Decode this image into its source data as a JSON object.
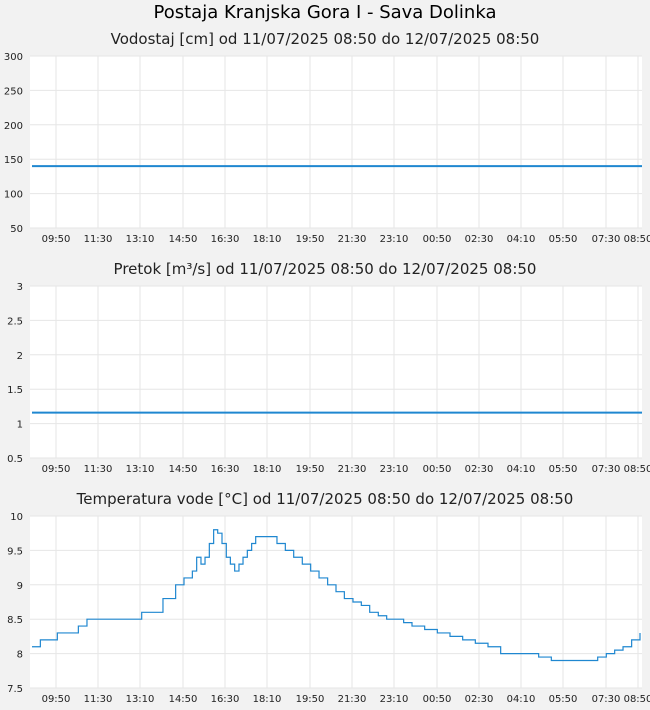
{
  "page_title": "Postaja Kranjska Gora I - Sava Dolinka",
  "colors": {
    "series": "#1f87d0",
    "grid": "#e6e6e6",
    "background": "#f2f2f2",
    "plot": "#ffffff"
  },
  "chart_data": [
    {
      "type": "line",
      "title": "Vodostaj [cm] od 11/07/2025 08:50 do 12/07/2025 08:50",
      "xlabel": "",
      "ylabel": "",
      "ylim": [
        50,
        300
      ],
      "yticks": [
        "300",
        "250",
        "200",
        "150",
        "100",
        "50"
      ],
      "xticks": [
        "09:50",
        "11:30",
        "13:10",
        "14:50",
        "16:30",
        "18:10",
        "19:50",
        "21:30",
        "23:10",
        "00:50",
        "02:30",
        "04:10",
        "05:50",
        "07:30",
        "08:50"
      ],
      "grid": true,
      "series": [
        {
          "x": [
            "08:50",
            "08:50+24h"
          ],
          "y": [
            140,
            140
          ]
        }
      ]
    },
    {
      "type": "line",
      "title": "Pretok [m³/s] od 11/07/2025 08:50 do 12/07/2025 08:50",
      "xlabel": "",
      "ylabel": "",
      "ylim": [
        0.5,
        3
      ],
      "yticks": [
        "3",
        "2.5",
        "2",
        "1.5",
        "1",
        "0.5"
      ],
      "xticks": [
        "09:50",
        "11:30",
        "13:10",
        "14:50",
        "16:30",
        "18:10",
        "19:50",
        "21:30",
        "23:10",
        "00:50",
        "02:30",
        "04:10",
        "05:50",
        "07:30",
        "08:50"
      ],
      "grid": true,
      "series": [
        {
          "x": [
            "08:50",
            "08:50+24h"
          ],
          "y": [
            1.16,
            1.16
          ]
        }
      ]
    },
    {
      "type": "line",
      "title": "Temperatura vode [°C] od 11/07/2025 08:50 do 12/07/2025 08:50",
      "xlabel": "",
      "ylabel": "",
      "ylim": [
        7.5,
        10
      ],
      "yticks": [
        "10",
        "9.5",
        "9",
        "8.5",
        "8",
        "7.5"
      ],
      "xticks": [
        "09:50",
        "11:30",
        "13:10",
        "14:50",
        "16:30",
        "18:10",
        "19:50",
        "21:30",
        "23:10",
        "00:50",
        "02:30",
        "04:10",
        "05:50",
        "07:30",
        "08:50"
      ],
      "grid": true,
      "series": [
        {
          "x_hours": [
            0,
            0.33,
            0.67,
            1.0,
            1.5,
            1.83,
            2.17,
            2.5,
            3.0,
            3.5,
            3.83,
            4.0,
            4.17,
            4.33,
            4.67,
            5.0,
            5.17,
            5.33,
            5.67,
            6.0,
            6.17,
            6.33,
            6.5,
            6.67,
            6.83,
            7.0,
            7.17,
            7.33,
            7.5,
            7.67,
            7.83,
            8.0,
            8.17,
            8.33,
            8.5,
            8.67,
            8.83,
            9.0,
            9.17,
            9.33,
            9.5,
            9.67,
            10.0,
            10.33,
            10.67,
            11.0,
            11.33,
            11.67,
            12.0,
            12.33,
            12.67,
            13.0,
            13.33,
            13.67,
            14.0,
            14.33,
            14.67,
            15.0,
            15.5,
            16.0,
            16.5,
            17.0,
            17.5,
            18.0,
            18.5,
            19.0,
            19.5,
            20.0,
            20.5,
            21.0,
            21.5,
            22.0,
            22.33,
            22.67,
            23.0,
            23.33,
            23.67,
            24.0
          ],
          "y": [
            8.1,
            8.2,
            8.2,
            8.3,
            8.3,
            8.4,
            8.5,
            8.5,
            8.5,
            8.5,
            8.5,
            8.5,
            8.5,
            8.6,
            8.6,
            8.6,
            8.8,
            8.8,
            9.0,
            9.1,
            9.1,
            9.2,
            9.4,
            9.3,
            9.4,
            9.6,
            9.8,
            9.75,
            9.6,
            9.4,
            9.3,
            9.2,
            9.3,
            9.4,
            9.5,
            9.6,
            9.7,
            9.7,
            9.7,
            9.7,
            9.7,
            9.6,
            9.5,
            9.4,
            9.3,
            9.2,
            9.1,
            9.0,
            8.9,
            8.8,
            8.75,
            8.7,
            8.6,
            8.55,
            8.5,
            8.5,
            8.45,
            8.4,
            8.35,
            8.3,
            8.25,
            8.2,
            8.15,
            8.1,
            8.0,
            8.0,
            8.0,
            7.95,
            7.9,
            7.9,
            7.9,
            7.9,
            7.95,
            8.0,
            8.05,
            8.1,
            8.2,
            8.3
          ]
        }
      ]
    }
  ]
}
